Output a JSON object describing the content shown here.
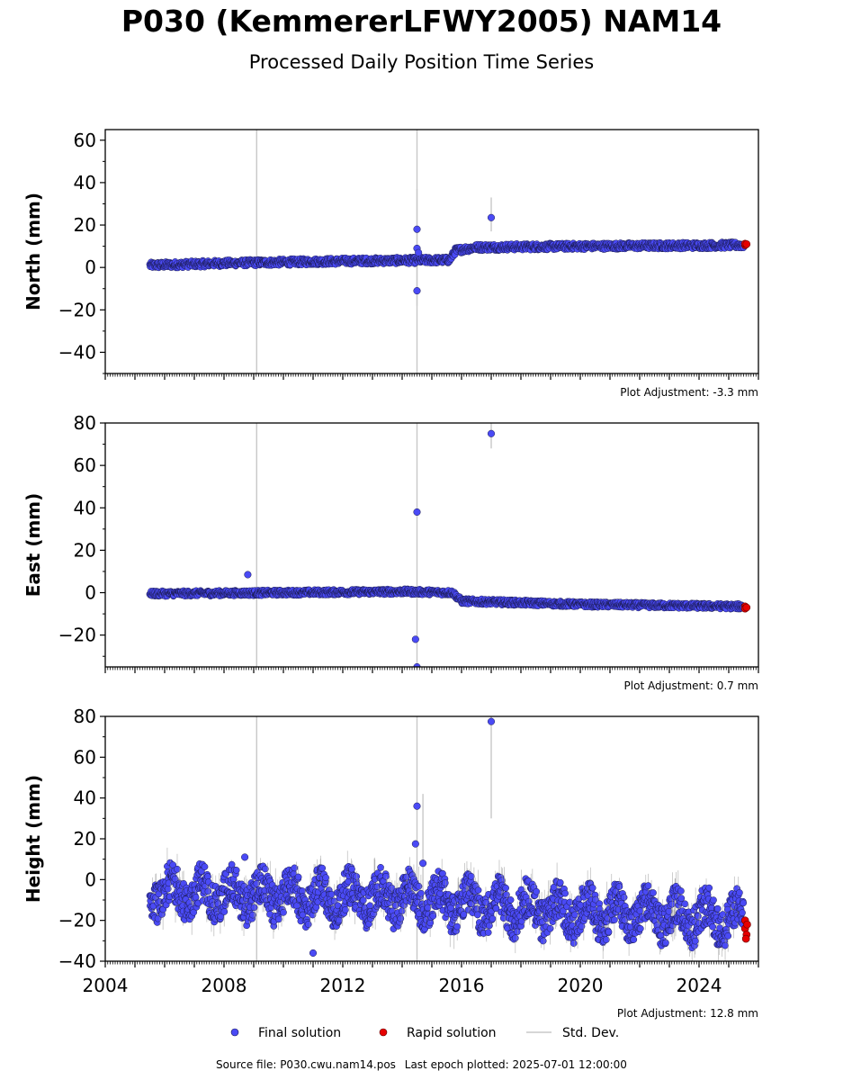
{
  "header": {
    "title": "P030 (KemmererLFWY2005) NAM14",
    "subtitle": "Processed Daily Position Time Series"
  },
  "footer": {
    "source": "Source file: P030.cwu.nam14.pos",
    "last_epoch": "Last epoch plotted: 2025-07-01 12:00:00"
  },
  "colors": {
    "final": "#4a4af5",
    "final_edge": "#1a1a50",
    "rapid": "#e60000",
    "stddev": "#c8c8c8"
  },
  "chart_data": [
    {
      "type": "scatter",
      "ylabel": "North (mm)",
      "ylim": [
        -50,
        65
      ],
      "yticks": [
        -40,
        -20,
        0,
        20,
        40,
        60
      ],
      "xlim": [
        2004,
        2026
      ],
      "adjustment": "Plot Adjustment: -3.3 mm",
      "trend": [
        [
          2005.5,
          1
        ],
        [
          2008,
          2
        ],
        [
          2012,
          3
        ],
        [
          2015.6,
          3.5
        ],
        [
          2015.8,
          8
        ],
        [
          2016.5,
          9.5
        ],
        [
          2020,
          10
        ],
        [
          2025.3,
          10.5
        ]
      ],
      "scatter_amp": 3,
      "outliers": [
        [
          2014.5,
          18
        ],
        [
          2014.5,
          9
        ],
        [
          2014.5,
          -11
        ],
        [
          2014.55,
          7
        ],
        [
          2017.0,
          23.5
        ]
      ],
      "stddev_spikes": [
        [
          2009.1,
          -50,
          65
        ],
        [
          2014.5,
          -50,
          65
        ],
        [
          2014.5,
          -18,
          37
        ],
        [
          2017.0,
          17,
          33
        ]
      ],
      "rapid": [
        [
          2025.55,
          10.5
        ],
        [
          2025.55,
          11.2
        ],
        [
          2025.6,
          11
        ]
      ],
      "series": [
        {
          "name": "Final solution",
          "values": "daily positions 2005.5–2025.5"
        },
        {
          "name": "Rapid solution",
          "values": "2025.5–2025.6"
        }
      ]
    },
    {
      "type": "scatter",
      "ylabel": "East (mm)",
      "ylim": [
        -35,
        80
      ],
      "yticks": [
        -20,
        0,
        20,
        40,
        60,
        80
      ],
      "xlim": [
        2004,
        2026
      ],
      "adjustment": "Plot Adjustment: 0.7 mm",
      "trend": [
        [
          2005.5,
          -0.5
        ],
        [
          2010,
          0
        ],
        [
          2014,
          0.5
        ],
        [
          2015.7,
          0
        ],
        [
          2016,
          -4
        ],
        [
          2020,
          -5.5
        ],
        [
          2025.3,
          -6.5
        ]
      ],
      "scatter_amp": 2.5,
      "outliers": [
        [
          2008.8,
          8.5
        ],
        [
          2014.5,
          38
        ],
        [
          2014.45,
          -22
        ],
        [
          2014.5,
          -35
        ],
        [
          2017.0,
          75
        ]
      ],
      "stddev_spikes": [
        [
          2009.1,
          -35,
          80
        ],
        [
          2014.5,
          -35,
          80
        ],
        [
          2017.0,
          68,
          80
        ]
      ],
      "rapid": [
        [
          2025.55,
          -6.5
        ],
        [
          2025.55,
          -7.5
        ],
        [
          2025.6,
          -7
        ]
      ],
      "series": [
        {
          "name": "Final solution",
          "values": "daily positions 2005.5–2025.5"
        },
        {
          "name": "Rapid solution",
          "values": "2025.5–2025.6"
        }
      ]
    },
    {
      "type": "scatter",
      "ylabel": "Height (mm)",
      "ylim": [
        -40,
        80
      ],
      "yticks": [
        -40,
        -20,
        0,
        20,
        40,
        60,
        80
      ],
      "xlim": [
        2004,
        2026
      ],
      "xticks": [
        2004,
        2008,
        2012,
        2016,
        2020,
        2024
      ],
      "adjustment": "Plot Adjustment: 12.8 mm",
      "trend": [
        [
          2005.5,
          -6
        ],
        [
          2010,
          -8
        ],
        [
          2014,
          -9
        ],
        [
          2017,
          -13
        ],
        [
          2020,
          -16
        ],
        [
          2025.3,
          -19
        ]
      ],
      "scatter_amp": 12,
      "outliers": [
        [
          2008.7,
          11
        ],
        [
          2014.45,
          17.5
        ],
        [
          2014.5,
          36
        ],
        [
          2014.7,
          8
        ],
        [
          2017.0,
          77.5
        ],
        [
          2011.0,
          -36
        ]
      ],
      "stddev_spikes": [
        [
          2009.1,
          -40,
          80
        ],
        [
          2014.5,
          -40,
          80
        ],
        [
          2017.0,
          30,
          80
        ],
        [
          2014.7,
          -20,
          42
        ]
      ],
      "rapid": [
        [
          2025.55,
          -20
        ],
        [
          2025.55,
          -24
        ],
        [
          2025.6,
          -27
        ],
        [
          2025.58,
          -29
        ],
        [
          2025.62,
          -22
        ]
      ],
      "series": [
        {
          "name": "Final solution",
          "values": "daily positions 2005.5–2025.5"
        },
        {
          "name": "Rapid solution",
          "values": "2025.5–2025.6"
        }
      ]
    }
  ],
  "legend": {
    "final_label": "Final solution",
    "rapid_label": "Rapid solution",
    "stddev_label": "Std. Dev."
  }
}
